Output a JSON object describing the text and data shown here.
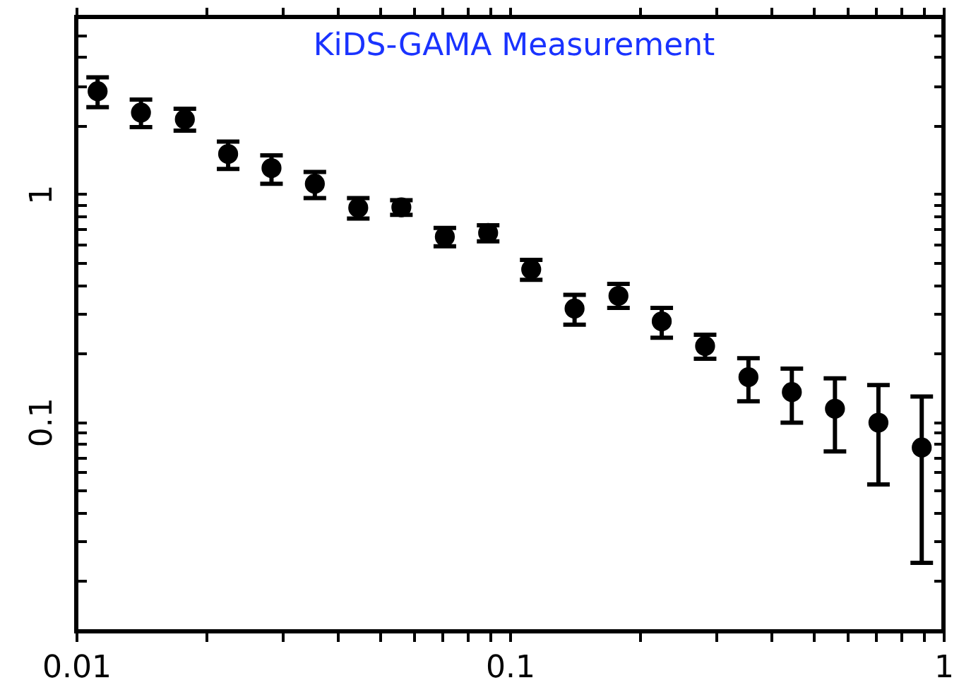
{
  "chart_data": {
    "type": "scatter",
    "annotations": [
      "KiDS-GAMA   Measurement"
    ],
    "x": [
      0.0112,
      0.0141,
      0.0178,
      0.0224,
      0.0282,
      0.0355,
      0.0447,
      0.0562,
      0.0708,
      0.0891,
      0.112,
      0.141,
      0.178,
      0.224,
      0.282,
      0.355,
      0.447,
      0.562,
      0.708,
      0.891
    ],
    "series": [
      {
        "color": "#000000",
        "values": [
          2.83,
          2.28,
          2.13,
          1.5,
          1.3,
          1.11,
          0.87,
          0.875,
          0.65,
          0.675,
          0.467,
          0.314,
          0.357,
          0.276,
          0.215,
          0.157,
          0.135,
          0.114,
          0.099,
          0.077
        ],
        "errors": [
          [
            2.41,
            3.26
          ],
          [
            1.97,
            2.6
          ],
          [
            1.9,
            2.37
          ],
          [
            1.29,
            1.7
          ],
          [
            1.11,
            1.48
          ],
          [
            0.96,
            1.25
          ],
          [
            0.78,
            0.96
          ],
          [
            0.81,
            0.94
          ],
          [
            0.59,
            0.71
          ],
          [
            0.62,
            0.73
          ],
          [
            0.42,
            0.514
          ],
          [
            0.267,
            0.361
          ],
          [
            0.316,
            0.403
          ],
          [
            0.234,
            0.316
          ],
          [
            0.189,
            0.241
          ],
          [
            0.123,
            0.19
          ],
          [
            0.099,
            0.171
          ],
          [
            0.074,
            0.155
          ],
          [
            0.053,
            0.145
          ],
          [
            0.024,
            0.129
          ]
        ]
      }
    ],
    "log": "xy",
    "marker": "circle",
    "grid": false,
    "xlim": [
      0.01,
      1
    ],
    "ylim": [
      0.012,
      6
    ],
    "xticks": [
      {
        "value": 0.01,
        "label": "0.01"
      },
      {
        "value": 0.02,
        "label": null
      },
      {
        "value": 0.03,
        "label": null
      },
      {
        "value": 0.04,
        "label": null
      },
      {
        "value": 0.05,
        "label": null
      },
      {
        "value": 0.06,
        "label": null
      },
      {
        "value": 0.07,
        "label": null
      },
      {
        "value": 0.08,
        "label": null
      },
      {
        "value": 0.09,
        "label": null
      },
      {
        "value": 0.1,
        "label": "0.1"
      },
      {
        "value": 0.2,
        "label": null
      },
      {
        "value": 0.3,
        "label": null
      },
      {
        "value": 0.4,
        "label": null
      },
      {
        "value": 0.5,
        "label": null
      },
      {
        "value": 0.6,
        "label": null
      },
      {
        "value": 0.7,
        "label": null
      },
      {
        "value": 0.8,
        "label": null
      },
      {
        "value": 0.9,
        "label": null
      },
      {
        "value": 1,
        "label": "1"
      }
    ],
    "yticks": [
      {
        "value": 0.02,
        "label": null
      },
      {
        "value": 0.03,
        "label": null
      },
      {
        "value": 0.04,
        "label": null
      },
      {
        "value": 0.05,
        "label": null
      },
      {
        "value": 0.06,
        "label": null
      },
      {
        "value": 0.07,
        "label": null
      },
      {
        "value": 0.08,
        "label": null
      },
      {
        "value": 0.09,
        "label": null
      },
      {
        "value": 0.1,
        "label": "0.1"
      },
      {
        "value": 0.2,
        "label": null
      },
      {
        "value": 0.3,
        "label": null
      },
      {
        "value": 0.4,
        "label": null
      },
      {
        "value": 0.5,
        "label": null
      },
      {
        "value": 0.6,
        "label": null
      },
      {
        "value": 0.7,
        "label": null
      },
      {
        "value": 0.8,
        "label": null
      },
      {
        "value": 0.9,
        "label": null
      },
      {
        "value": 1,
        "label": "1"
      },
      {
        "value": 2,
        "label": null
      },
      {
        "value": 3,
        "label": null
      },
      {
        "value": 4,
        "label": null
      },
      {
        "value": 5,
        "label": null
      }
    ]
  }
}
